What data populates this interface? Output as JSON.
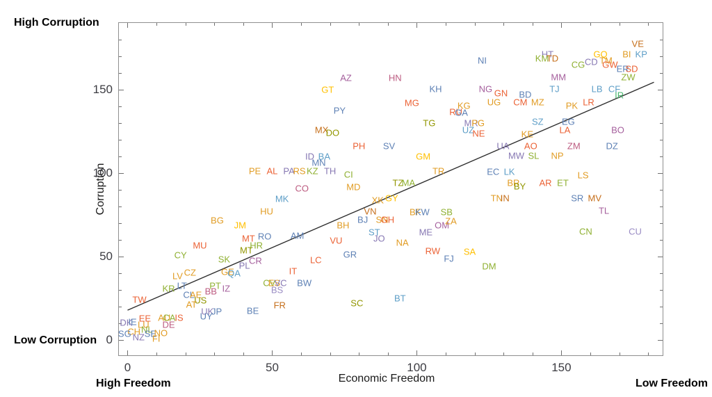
{
  "labels": {
    "top_left": "High Corruption",
    "bottom_left": "Low Corruption",
    "y_axis": "Corruption",
    "x_axis": "Economic Freedom",
    "x_left": "High Freedom",
    "x_right": "Low Freedom"
  },
  "palette": {
    "blue": "#5e81b5",
    "orange": "#e19c24",
    "green": "#8fb032",
    "red": "#eb6235",
    "purple": "#8778b3",
    "brown": "#c56e1a",
    "lightblue": "#5d9ec7",
    "yellow": "#ffbf00",
    "magenta": "#a5609d",
    "olive": "#929600",
    "pink": "#bc5b80",
    "teal": "#47b66d",
    "lavender": "#9a8cc4"
  },
  "chart_data": {
    "type": "scatter",
    "title": "",
    "xlabel": "Economic Freedom",
    "ylabel": "Corruption",
    "xlim": [
      -3,
      185
    ],
    "ylim": [
      -9,
      190
    ],
    "x_major_ticks": [
      0,
      50,
      100,
      150
    ],
    "y_major_ticks": [
      0,
      50,
      100,
      150
    ],
    "minor_tick_step": 10,
    "minor_tick_max": 180,
    "grid": false,
    "legend": "none",
    "trend_line": {
      "x1": 0,
      "y1": 18,
      "x2": 182,
      "y2": 154.5,
      "color": "#2e2e2e"
    },
    "point_format": [
      "label",
      "economic_freedom_rank",
      "corruption_rank",
      "color_key"
    ],
    "points": [
      [
        "VE",
        176.4,
        177.5,
        "brown"
      ],
      [
        "HT",
        145.2,
        171.3,
        "purple"
      ],
      [
        "KM",
        143.3,
        168.8,
        "green"
      ],
      [
        "TD",
        146.9,
        168.8,
        "brown"
      ],
      [
        "GQ",
        163.5,
        171.3,
        "yellow"
      ],
      [
        "TM",
        165.4,
        167.5,
        "orange"
      ],
      [
        "BI",
        172.6,
        171.3,
        "orange"
      ],
      [
        "KP",
        177.6,
        171.3,
        "lightblue"
      ],
      [
        "CG",
        155.8,
        165,
        "green"
      ],
      [
        "CD",
        160.3,
        166.7,
        "purple"
      ],
      [
        "GW",
        166.8,
        165,
        "red"
      ],
      [
        "ER",
        171.2,
        162.5,
        "blue"
      ],
      [
        "SD",
        174.3,
        162.5,
        "red"
      ],
      [
        "ZW",
        173.1,
        157.5,
        "green"
      ],
      [
        "NI",
        122.6,
        167.5,
        "blue"
      ],
      [
        "MM",
        149,
        157.5,
        "magenta"
      ],
      [
        "NG",
        123.8,
        150.4,
        "magenta"
      ],
      [
        "GN",
        129.1,
        147.9,
        "red"
      ],
      [
        "BD",
        137.5,
        147.1,
        "blue"
      ],
      [
        "TJ",
        147.6,
        150.4,
        "lightblue"
      ],
      [
        "LB",
        162.3,
        150.4,
        "lightblue"
      ],
      [
        "CF",
        168.3,
        150.4,
        "lightblue"
      ],
      [
        "IR",
        170,
        146.7,
        "teal"
      ],
      [
        "UG",
        126.7,
        142.5,
        "orange"
      ],
      [
        "CM",
        135.8,
        142.5,
        "red"
      ],
      [
        "MZ",
        141.8,
        142.5,
        "orange"
      ],
      [
        "PK",
        153.6,
        140.4,
        "orange"
      ],
      [
        "LR",
        159.4,
        142.5,
        "red"
      ],
      [
        "KG",
        116.3,
        140.4,
        "orange"
      ],
      [
        "RU",
        113.5,
        136.7,
        "red"
      ],
      [
        "GA",
        115.4,
        136.3,
        "blue"
      ],
      [
        "AZ",
        75.5,
        157.1,
        "magenta"
      ],
      [
        "HN",
        92.5,
        157.1,
        "pink"
      ],
      [
        "GT",
        69.2,
        150,
        "yellow"
      ],
      [
        "KH",
        106.5,
        150.4,
        "blue"
      ],
      [
        "MG",
        98.3,
        142.1,
        "red"
      ],
      [
        "PY",
        73.3,
        137.5,
        "blue"
      ],
      [
        "MX",
        67.1,
        125.8,
        "brown"
      ],
      [
        "DO",
        70.9,
        124.2,
        "olive"
      ],
      [
        "TG",
        104.3,
        130,
        "olive"
      ],
      [
        "MR",
        118.8,
        130,
        "purple"
      ],
      [
        "PG",
        121.2,
        130,
        "orange"
      ],
      [
        "UZ",
        117.8,
        125.8,
        "lightblue"
      ],
      [
        "NE",
        121.4,
        123.8,
        "red"
      ],
      [
        "PH",
        80,
        116.3,
        "red"
      ],
      [
        "SV",
        90.4,
        116.3,
        "blue"
      ],
      [
        "ID",
        63,
        110,
        "purple"
      ],
      [
        "BA",
        68,
        110,
        "lightblue"
      ],
      [
        "MN",
        66.1,
        106.3,
        "blue"
      ],
      [
        "PE",
        44,
        101.3,
        "orange"
      ],
      [
        "AL",
        50,
        101.3,
        "red"
      ],
      [
        "PA",
        55.8,
        101.3,
        "purple"
      ],
      [
        "RS",
        59.4,
        101.3,
        "orange"
      ],
      [
        "KZ",
        63.9,
        101.3,
        "green"
      ],
      [
        "TH",
        70,
        101.3,
        "purple"
      ],
      [
        "CI",
        76.4,
        99.2,
        "green"
      ],
      [
        "CO",
        60.3,
        90.8,
        "pink"
      ],
      [
        "MD",
        78.1,
        91.7,
        "orange"
      ],
      [
        "GM",
        102.2,
        110,
        "yellow"
      ],
      [
        "TR",
        107.5,
        101.3,
        "orange"
      ],
      [
        "TZ",
        93.5,
        94.2,
        "olive"
      ],
      [
        "MA",
        97.1,
        94.2,
        "green"
      ],
      [
        "MK",
        53.4,
        84.6,
        "lightblue"
      ],
      [
        "HU",
        48.1,
        77.1,
        "orange"
      ],
      [
        "BG",
        31,
        71.7,
        "orange"
      ],
      [
        "JM",
        38.9,
        68.8,
        "yellow"
      ],
      [
        "MT",
        41.8,
        60.8,
        "red"
      ],
      [
        "RO",
        47.4,
        62.1,
        "blue"
      ],
      [
        "AM",
        58.7,
        62.5,
        "blue"
      ],
      [
        "MU",
        25,
        56.7,
        "red"
      ],
      [
        "MT",
        41.1,
        53.8,
        "olive"
      ],
      [
        "HR",
        44.5,
        56.7,
        "green"
      ],
      [
        "CY",
        18.3,
        50.8,
        "green"
      ],
      [
        "SK",
        33.4,
        48.3,
        "green"
      ],
      [
        "CR",
        44.2,
        47.5,
        "magenta"
      ],
      [
        "PL",
        40.4,
        44.6,
        "purple"
      ],
      [
        "LV",
        17.3,
        38.3,
        "orange"
      ],
      [
        "CZ",
        21.6,
        40.4,
        "orange"
      ],
      [
        "GE",
        34.6,
        40.8,
        "orange"
      ],
      [
        "QA",
        36.8,
        40,
        "lightblue"
      ],
      [
        "IT",
        57.2,
        41.3,
        "red"
      ],
      [
        "LC",
        65.1,
        47.9,
        "red"
      ],
      [
        "GR",
        76.9,
        51.3,
        "blue"
      ],
      [
        "VU",
        72.1,
        59.6,
        "red"
      ],
      [
        "BH",
        74.5,
        68.8,
        "orange"
      ],
      [
        "BJ",
        81.3,
        72.1,
        "blue"
      ],
      [
        "SN",
        88,
        72.1,
        "orange"
      ],
      [
        "GH",
        89.9,
        72.1,
        "red"
      ],
      [
        "VN",
        83.9,
        77.1,
        "brown"
      ],
      [
        "XK",
        86.5,
        83.8,
        "orange"
      ],
      [
        "GY",
        91.3,
        85,
        "yellow"
      ],
      [
        "BF",
        99.5,
        76.7,
        "orange"
      ],
      [
        "KW",
        101.9,
        76.7,
        "blue"
      ],
      [
        "ST",
        85.3,
        64.6,
        "lightblue"
      ],
      [
        "JO",
        87,
        60.8,
        "purple"
      ],
      [
        "NA",
        95,
        58.3,
        "orange"
      ],
      [
        "ME",
        103.1,
        64.6,
        "purple"
      ],
      [
        "OM",
        108.7,
        68.8,
        "magenta"
      ],
      [
        "ZA",
        111.8,
        71.3,
        "orange"
      ],
      [
        "SB",
        110.3,
        76.7,
        "green"
      ],
      [
        "RW",
        105.5,
        53.3,
        "red"
      ],
      [
        "SA",
        118.3,
        52.9,
        "yellow"
      ],
      [
        "FJ",
        111.1,
        48.8,
        "blue"
      ],
      [
        "DM",
        125,
        44.2,
        "green"
      ],
      [
        "SC",
        79.3,
        22.1,
        "olive"
      ],
      [
        "BT",
        94.2,
        25,
        "lightblue"
      ],
      [
        "EC",
        126.4,
        100.8,
        "blue"
      ],
      [
        "LK",
        132,
        100.8,
        "lightblue"
      ],
      [
        "UA",
        129.8,
        116.3,
        "purple"
      ],
      [
        "AO",
        139.4,
        116.3,
        "red"
      ],
      [
        "MW",
        134.4,
        110.4,
        "purple"
      ],
      [
        "SL",
        140.4,
        110.4,
        "green"
      ],
      [
        "NP",
        148.6,
        110.4,
        "orange"
      ],
      [
        "SZ",
        141.8,
        130.8,
        "lightblue"
      ],
      [
        "EG",
        152.4,
        130.8,
        "blue"
      ],
      [
        "LA",
        151.2,
        125.8,
        "red"
      ],
      [
        "KE",
        138.2,
        123.3,
        "orange"
      ],
      [
        "ZM",
        154.3,
        116.3,
        "pink"
      ],
      [
        "DZ",
        167.5,
        116.3,
        "blue"
      ],
      [
        "BO",
        169.5,
        125.8,
        "magenta"
      ],
      [
        "LS",
        157.5,
        98.8,
        "orange"
      ],
      [
        "BR",
        133.4,
        94.2,
        "orange"
      ],
      [
        "BY",
        135.6,
        92.1,
        "olive"
      ],
      [
        "AR",
        144.5,
        94.2,
        "red"
      ],
      [
        "ET",
        150.5,
        94.2,
        "green"
      ],
      [
        "TN",
        127.6,
        85,
        "orange"
      ],
      [
        "IN",
        130.5,
        85,
        "brown"
      ],
      [
        "SR",
        155.5,
        85,
        "blue"
      ],
      [
        "MV",
        161.5,
        85,
        "brown"
      ],
      [
        "TL",
        164.7,
        77.5,
        "magenta"
      ],
      [
        "CN",
        158.4,
        65,
        "green"
      ],
      [
        "CU",
        175.5,
        65,
        "lavender"
      ],
      [
        "TW",
        4.1,
        24.2,
        "red"
      ],
      [
        "KR",
        14.2,
        30.8,
        "green"
      ],
      [
        "LT",
        18.8,
        32.5,
        "blue"
      ],
      [
        "PT",
        30.3,
        32.5,
        "green"
      ],
      [
        "IZ",
        34.1,
        30.8,
        "magenta"
      ],
      [
        "BB",
        28.8,
        29.2,
        "pink"
      ],
      [
        "CL",
        21.2,
        27.1,
        "blue"
      ],
      [
        "AE",
        23.6,
        27.1,
        "orange"
      ],
      [
        "US",
        25.2,
        23.8,
        "olive"
      ],
      [
        "AT",
        22.1,
        21.3,
        "orange"
      ],
      [
        "UK",
        27.6,
        17.1,
        "purple"
      ],
      [
        "JP",
        30.8,
        17.1,
        "blue"
      ],
      [
        "UY",
        27.2,
        14.2,
        "blue"
      ],
      [
        "BE",
        43.3,
        17.5,
        "blue"
      ],
      [
        "FR",
        52.6,
        20.8,
        "brown"
      ],
      [
        "CV",
        49,
        34.2,
        "green"
      ],
      [
        "ES",
        50.7,
        34.2,
        "orange"
      ],
      [
        "VC",
        52.9,
        34.2,
        "purple"
      ],
      [
        "BS",
        51.7,
        30,
        "lavender"
      ],
      [
        "BW",
        61.1,
        34.2,
        "blue"
      ],
      [
        "EE",
        6,
        12.9,
        "red"
      ],
      [
        "AU",
        12.7,
        13.3,
        "orange"
      ],
      [
        "CA",
        14.4,
        13.3,
        "green"
      ],
      [
        "IS",
        17.8,
        13.3,
        "red"
      ],
      [
        "DK",
        -0.5,
        10.4,
        "purple"
      ],
      [
        "IE",
        1.7,
        10.8,
        "blue"
      ],
      [
        "LU",
        5.5,
        9.2,
        "orange"
      ],
      [
        "DE",
        14.2,
        9.2,
        "pink"
      ],
      [
        "NL",
        6.7,
        6.3,
        "green"
      ],
      [
        "CH",
        2.2,
        5,
        "orange"
      ],
      [
        "SE",
        7.9,
        3.8,
        "blue"
      ],
      [
        "NO",
        11.5,
        4.2,
        "orange"
      ],
      [
        "SG",
        -1,
        3.8,
        "blue"
      ],
      [
        "NZ",
        3.8,
        1.7,
        "purple"
      ],
      [
        "FI",
        9.9,
        0.8,
        "orange"
      ]
    ]
  }
}
